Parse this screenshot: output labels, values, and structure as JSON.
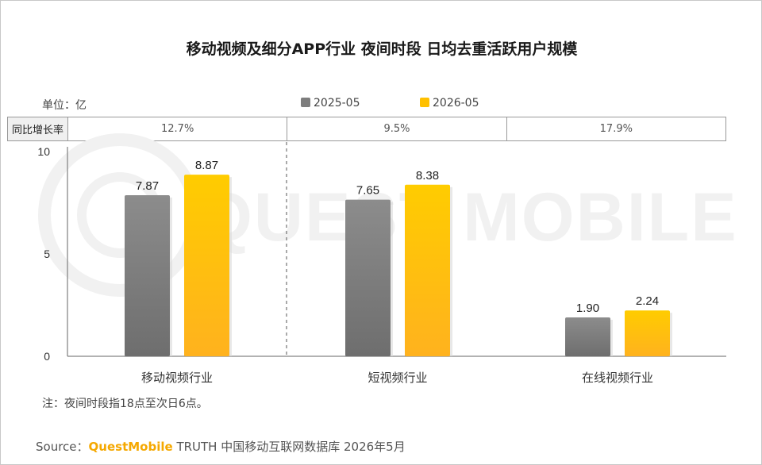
{
  "title": "移动视频及细分APP行业 夜间时段 日均去重活跃用户规模",
  "unit_label": "单位：亿",
  "yoy": {
    "header": "同比增长率",
    "values": [
      "12.7%",
      "9.5%",
      "17.9%"
    ]
  },
  "note": "注：夜间时段指18点至次日6点。",
  "source": {
    "prefix": "Source：",
    "brand": "QuestMobile",
    "rest": " TRUTH 中国移动互联网数据库 2026年5月"
  },
  "watermark": "QUEST MOBILE",
  "colors": {
    "series_2025": "#7d7d7d",
    "series_2026": "#ffc000",
    "brand": "#f5a800"
  },
  "chart_data": {
    "type": "bar",
    "categories": [
      "移动视频行业",
      "短视频行业",
      "在线视频行业"
    ],
    "series": [
      {
        "name": "2025-05",
        "values": [
          7.87,
          7.65,
          1.9
        ],
        "labels": [
          "7.87",
          "7.65",
          "1.90"
        ]
      },
      {
        "name": "2026-05",
        "values": [
          8.87,
          8.38,
          2.24
        ],
        "labels": [
          "8.87",
          "8.38",
          "2.24"
        ]
      }
    ],
    "ylim": [
      0,
      10
    ],
    "yticks": [
      "0",
      "5",
      "10"
    ],
    "ytick_values": [
      0,
      5,
      10
    ],
    "unit": "亿",
    "legend_position": "top",
    "grid": false
  }
}
